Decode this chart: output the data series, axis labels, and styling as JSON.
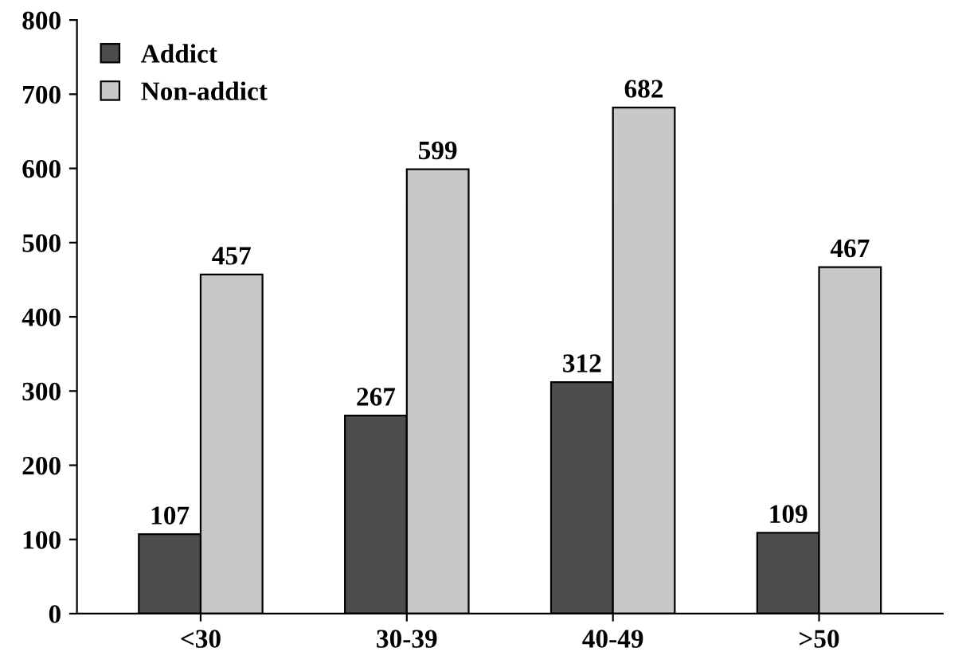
{
  "chart_data": {
    "type": "bar",
    "categories": [
      "<30",
      "30-39",
      "40-49",
      ">50"
    ],
    "series": [
      {
        "name": "Addict",
        "color": "#4d4d4d",
        "values": [
          107,
          267,
          312,
          109
        ]
      },
      {
        "name": "Non-addict",
        "color": "#c8c8c8",
        "values": [
          457,
          599,
          682,
          467
        ]
      }
    ],
    "ylim": [
      0,
      800
    ],
    "yticks": [
      0,
      100,
      200,
      300,
      400,
      500,
      600,
      700,
      800
    ],
    "data_labels": true,
    "legend": "top left",
    "grid": false
  }
}
